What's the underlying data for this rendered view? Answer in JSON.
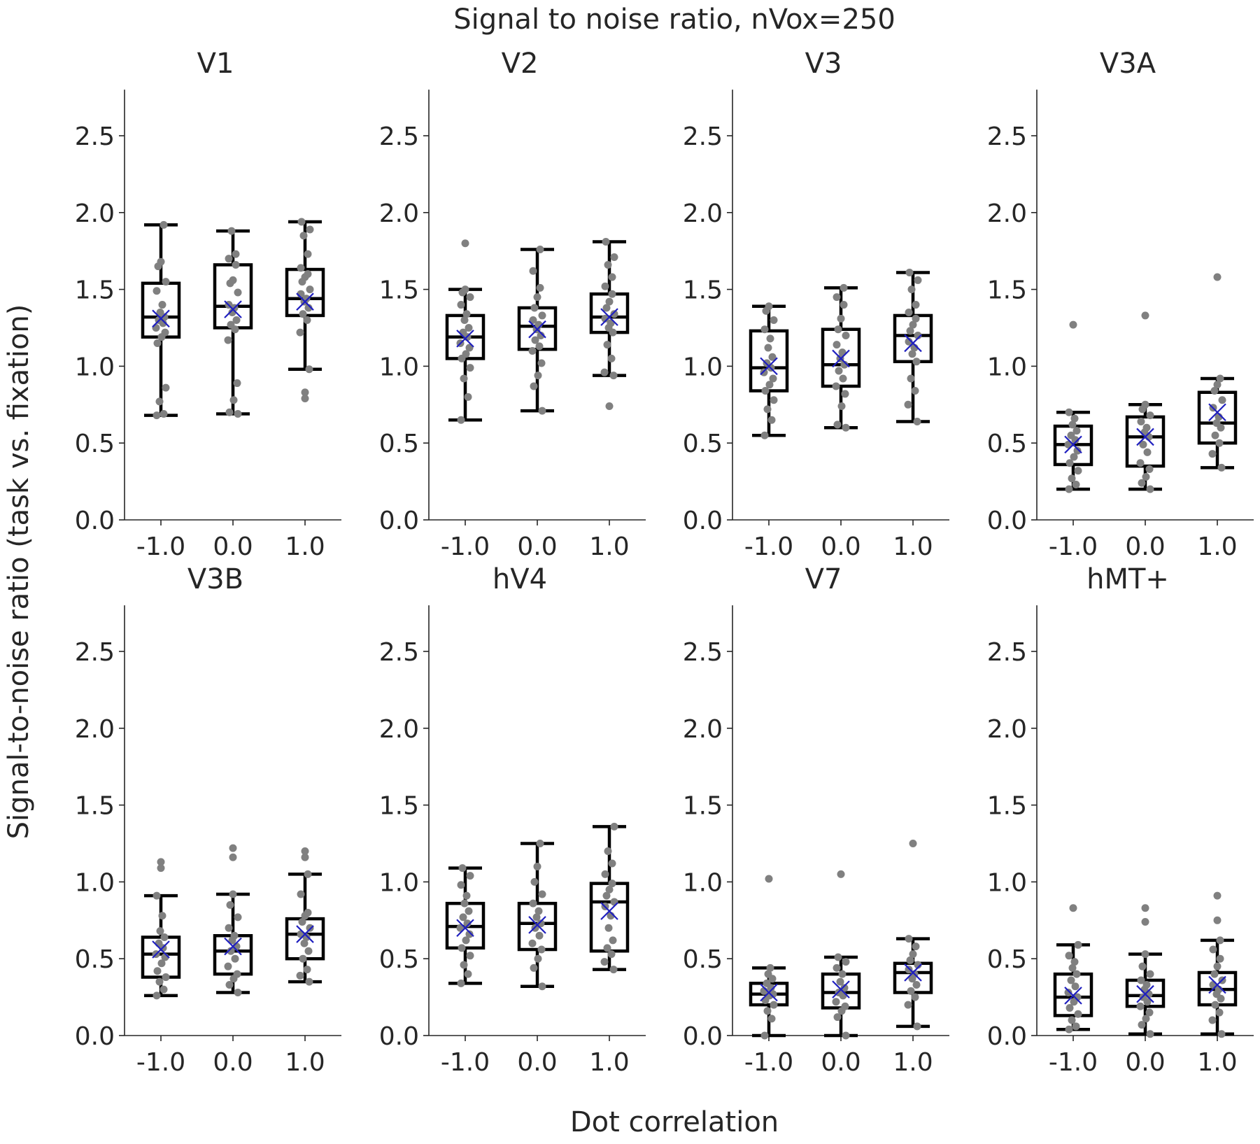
{
  "figure": {
    "title": "Signal to noise ratio, nVox=250",
    "xlabel": "Dot correlation",
    "ylabel": "Signal-to-noise ratio (task vs. fixation)"
  },
  "colors": {
    "box": "#000000",
    "points": "#808080",
    "mean_marker": "#1f1fbf",
    "axis": "#262626"
  },
  "chart_data": {
    "type": "box",
    "layout": "2x4 grid",
    "shared_x": {
      "categories": [
        "-1.0",
        "0.0",
        "1.0"
      ]
    },
    "shared_y": {
      "ylim": [
        0,
        2.8
      ],
      "ticks": [
        "0.0",
        "0.5",
        "1.0",
        "1.5",
        "2.0",
        "2.5"
      ]
    },
    "grid": false,
    "legend": "none",
    "panels": [
      {
        "title": "V1",
        "groups": [
          {
            "category": "-1.0",
            "whisker_low": 0.68,
            "q1": 1.19,
            "median": 1.32,
            "q3": 1.54,
            "whisker_high": 1.92,
            "mean": 1.31,
            "fliers": [],
            "points": [
              0.68,
              0.69,
              0.77,
              0.86,
              1.15,
              1.19,
              1.22,
              1.25,
              1.28,
              1.3,
              1.32,
              1.35,
              1.4,
              1.49,
              1.55,
              1.65,
              1.68,
              1.92
            ]
          },
          {
            "category": "0.0",
            "whisker_low": 0.69,
            "q1": 1.25,
            "median": 1.39,
            "q3": 1.66,
            "whisker_high": 1.88,
            "mean": 1.37,
            "fliers": [],
            "points": [
              0.69,
              0.7,
              0.78,
              0.89,
              1.17,
              1.24,
              1.27,
              1.3,
              1.35,
              1.38,
              1.4,
              1.48,
              1.54,
              1.56,
              1.66,
              1.7,
              1.73,
              1.88
            ]
          },
          {
            "category": "1.0",
            "whisker_low": 0.98,
            "q1": 1.33,
            "median": 1.44,
            "q3": 1.63,
            "whisker_high": 1.94,
            "mean": 1.42,
            "fliers": [
              0.79,
              0.83
            ],
            "points": [
              0.98,
              1.22,
              1.3,
              1.34,
              1.38,
              1.42,
              1.44,
              1.47,
              1.5,
              1.55,
              1.58,
              1.6,
              1.64,
              1.73,
              1.85,
              1.89,
              1.94
            ]
          }
        ]
      },
      {
        "title": "V2",
        "groups": [
          {
            "category": "-1.0",
            "whisker_low": 0.65,
            "q1": 1.05,
            "median": 1.19,
            "q3": 1.33,
            "whisker_high": 1.5,
            "mean": 1.18,
            "fliers": [
              1.8
            ],
            "points": [
              0.65,
              0.8,
              0.92,
              0.99,
              1.05,
              1.08,
              1.12,
              1.15,
              1.19,
              1.22,
              1.25,
              1.3,
              1.34,
              1.4,
              1.45,
              1.48,
              1.5
            ]
          },
          {
            "category": "0.0",
            "whisker_low": 0.71,
            "q1": 1.11,
            "median": 1.26,
            "q3": 1.38,
            "whisker_high": 1.76,
            "mean": 1.24,
            "fliers": [],
            "points": [
              0.71,
              0.87,
              0.94,
              1.02,
              1.1,
              1.13,
              1.17,
              1.2,
              1.24,
              1.27,
              1.3,
              1.33,
              1.38,
              1.45,
              1.51,
              1.62,
              1.76
            ]
          },
          {
            "category": "1.0",
            "whisker_low": 0.94,
            "q1": 1.22,
            "median": 1.32,
            "q3": 1.47,
            "whisker_high": 1.81,
            "mean": 1.32,
            "fliers": [
              0.74
            ],
            "points": [
              0.94,
              0.96,
              1.05,
              1.14,
              1.22,
              1.25,
              1.28,
              1.31,
              1.34,
              1.38,
              1.42,
              1.47,
              1.52,
              1.58,
              1.66,
              1.71,
              1.81
            ]
          }
        ]
      },
      {
        "title": "V3",
        "groups": [
          {
            "category": "-1.0",
            "whisker_low": 0.55,
            "q1": 0.84,
            "median": 0.99,
            "q3": 1.23,
            "whisker_high": 1.39,
            "mean": 1.0,
            "fliers": [],
            "points": [
              0.55,
              0.65,
              0.72,
              0.78,
              0.84,
              0.88,
              0.92,
              0.96,
              0.99,
              1.02,
              1.06,
              1.12,
              1.18,
              1.24,
              1.3,
              1.36,
              1.39
            ]
          },
          {
            "category": "0.0",
            "whisker_low": 0.6,
            "q1": 0.87,
            "median": 1.01,
            "q3": 1.24,
            "whisker_high": 1.51,
            "mean": 1.05,
            "fliers": [],
            "points": [
              0.6,
              0.62,
              0.74,
              0.82,
              0.87,
              0.92,
              0.97,
              1.01,
              1.05,
              1.09,
              1.14,
              1.2,
              1.24,
              1.31,
              1.4,
              1.45,
              1.51
            ]
          },
          {
            "category": "1.0",
            "whisker_low": 0.64,
            "q1": 1.03,
            "median": 1.2,
            "q3": 1.33,
            "whisker_high": 1.61,
            "mean": 1.15,
            "fliers": [],
            "points": [
              0.64,
              0.75,
              0.84,
              0.92,
              1.03,
              1.08,
              1.12,
              1.16,
              1.2,
              1.23,
              1.27,
              1.31,
              1.35,
              1.4,
              1.5,
              1.56,
              1.61
            ]
          }
        ]
      },
      {
        "title": "V3A",
        "groups": [
          {
            "category": "-1.0",
            "whisker_low": 0.2,
            "q1": 0.36,
            "median": 0.49,
            "q3": 0.61,
            "whisker_high": 0.7,
            "mean": 0.49,
            "fliers": [
              1.27
            ],
            "points": [
              0.2,
              0.23,
              0.27,
              0.32,
              0.37,
              0.41,
              0.45,
              0.49,
              0.52,
              0.55,
              0.58,
              0.62,
              0.66,
              0.7
            ]
          },
          {
            "category": "0.0",
            "whisker_low": 0.2,
            "q1": 0.35,
            "median": 0.54,
            "q3": 0.67,
            "whisker_high": 0.75,
            "mean": 0.54,
            "fliers": [
              1.33
            ],
            "points": [
              0.2,
              0.24,
              0.28,
              0.33,
              0.37,
              0.44,
              0.49,
              0.54,
              0.57,
              0.6,
              0.64,
              0.68,
              0.72,
              0.75
            ]
          },
          {
            "category": "1.0",
            "whisker_low": 0.34,
            "q1": 0.5,
            "median": 0.63,
            "q3": 0.83,
            "whisker_high": 0.92,
            "mean": 0.7,
            "fliers": [
              1.58
            ],
            "points": [
              0.34,
              0.43,
              0.5,
              0.55,
              0.6,
              0.63,
              0.67,
              0.73,
              0.78,
              0.84,
              0.88,
              0.92
            ]
          }
        ]
      },
      {
        "title": "V3B",
        "groups": [
          {
            "category": "-1.0",
            "whisker_low": 0.26,
            "q1": 0.38,
            "median": 0.53,
            "q3": 0.64,
            "whisker_high": 0.91,
            "mean": 0.56,
            "fliers": [
              1.09,
              1.13
            ],
            "points": [
              0.26,
              0.3,
              0.35,
              0.38,
              0.42,
              0.47,
              0.51,
              0.53,
              0.57,
              0.6,
              0.64,
              0.68,
              0.78,
              0.91
            ]
          },
          {
            "category": "0.0",
            "whisker_low": 0.28,
            "q1": 0.4,
            "median": 0.55,
            "q3": 0.65,
            "whisker_high": 0.92,
            "mean": 0.58,
            "fliers": [
              1.16,
              1.22
            ],
            "points": [
              0.28,
              0.33,
              0.37,
              0.4,
              0.45,
              0.5,
              0.55,
              0.58,
              0.62,
              0.65,
              0.7,
              0.77,
              0.85,
              0.92
            ]
          },
          {
            "category": "1.0",
            "whisker_low": 0.35,
            "q1": 0.5,
            "median": 0.66,
            "q3": 0.76,
            "whisker_high": 1.05,
            "mean": 0.66,
            "fliers": [
              1.16,
              1.2
            ],
            "points": [
              0.35,
              0.39,
              0.43,
              0.5,
              0.55,
              0.6,
              0.64,
              0.66,
              0.7,
              0.74,
              0.78,
              0.8,
              0.92,
              1.05
            ]
          }
        ]
      },
      {
        "title": "hV4",
        "groups": [
          {
            "category": "-1.0",
            "whisker_low": 0.34,
            "q1": 0.57,
            "median": 0.71,
            "q3": 0.86,
            "whisker_high": 1.09,
            "mean": 0.7,
            "fliers": [],
            "points": [
              0.34,
              0.4,
              0.46,
              0.52,
              0.57,
              0.62,
              0.66,
              0.7,
              0.73,
              0.77,
              0.81,
              0.86,
              0.91,
              0.98,
              1.04,
              1.09
            ]
          },
          {
            "category": "0.0",
            "whisker_low": 0.32,
            "q1": 0.56,
            "median": 0.73,
            "q3": 0.86,
            "whisker_high": 1.25,
            "mean": 0.72,
            "fliers": [],
            "points": [
              0.32,
              0.44,
              0.5,
              0.56,
              0.6,
              0.65,
              0.7,
              0.73,
              0.77,
              0.81,
              0.86,
              0.92,
              1.0,
              1.1,
              1.25
            ]
          },
          {
            "category": "1.0",
            "whisker_low": 0.43,
            "q1": 0.55,
            "median": 0.87,
            "q3": 0.99,
            "whisker_high": 1.36,
            "mean": 0.81,
            "fliers": [],
            "points": [
              0.43,
              0.48,
              0.53,
              0.57,
              0.62,
              0.7,
              0.78,
              0.84,
              0.87,
              0.91,
              0.95,
              0.99,
              1.05,
              1.12,
              1.2,
              1.36
            ]
          }
        ]
      },
      {
        "title": "V7",
        "groups": [
          {
            "category": "-1.0",
            "whisker_low": 0.0,
            "q1": 0.2,
            "median": 0.27,
            "q3": 0.34,
            "whisker_high": 0.44,
            "mean": 0.28,
            "fliers": [
              1.02
            ],
            "points": [
              0.0,
              0.11,
              0.16,
              0.2,
              0.23,
              0.26,
              0.27,
              0.29,
              0.31,
              0.34,
              0.37,
              0.4,
              0.44
            ]
          },
          {
            "category": "0.0",
            "whisker_low": 0.0,
            "q1": 0.18,
            "median": 0.28,
            "q3": 0.4,
            "whisker_high": 0.51,
            "mean": 0.3,
            "fliers": [
              1.05
            ],
            "points": [
              0.0,
              0.12,
              0.16,
              0.19,
              0.22,
              0.26,
              0.28,
              0.31,
              0.35,
              0.4,
              0.44,
              0.48,
              0.51
            ]
          },
          {
            "category": "1.0",
            "whisker_low": 0.06,
            "q1": 0.28,
            "median": 0.41,
            "q3": 0.47,
            "whisker_high": 0.63,
            "mean": 0.41,
            "fliers": [
              1.25
            ],
            "points": [
              0.06,
              0.2,
              0.25,
              0.29,
              0.33,
              0.37,
              0.4,
              0.43,
              0.46,
              0.49,
              0.53,
              0.58,
              0.63
            ]
          }
        ]
      },
      {
        "title": "hMT+",
        "groups": [
          {
            "category": "-1.0",
            "whisker_low": 0.04,
            "q1": 0.13,
            "median": 0.25,
            "q3": 0.4,
            "whisker_high": 0.59,
            "mean": 0.26,
            "fliers": [
              0.83
            ],
            "points": [
              0.04,
              0.06,
              0.1,
              0.14,
              0.18,
              0.22,
              0.25,
              0.28,
              0.32,
              0.36,
              0.4,
              0.44,
              0.48,
              0.52,
              0.59
            ]
          },
          {
            "category": "0.0",
            "whisker_low": 0.01,
            "q1": 0.19,
            "median": 0.26,
            "q3": 0.36,
            "whisker_high": 0.53,
            "mean": 0.27,
            "fliers": [
              0.74,
              0.83
            ],
            "points": [
              0.01,
              0.07,
              0.11,
              0.15,
              0.19,
              0.22,
              0.25,
              0.27,
              0.3,
              0.33,
              0.36,
              0.4,
              0.45,
              0.53
            ]
          },
          {
            "category": "1.0",
            "whisker_low": 0.01,
            "q1": 0.2,
            "median": 0.3,
            "q3": 0.41,
            "whisker_high": 0.62,
            "mean": 0.33,
            "fliers": [
              0.75,
              0.91
            ],
            "points": [
              0.01,
              0.1,
              0.15,
              0.2,
              0.24,
              0.27,
              0.3,
              0.33,
              0.36,
              0.4,
              0.45,
              0.5,
              0.56,
              0.62
            ]
          }
        ]
      }
    ]
  }
}
